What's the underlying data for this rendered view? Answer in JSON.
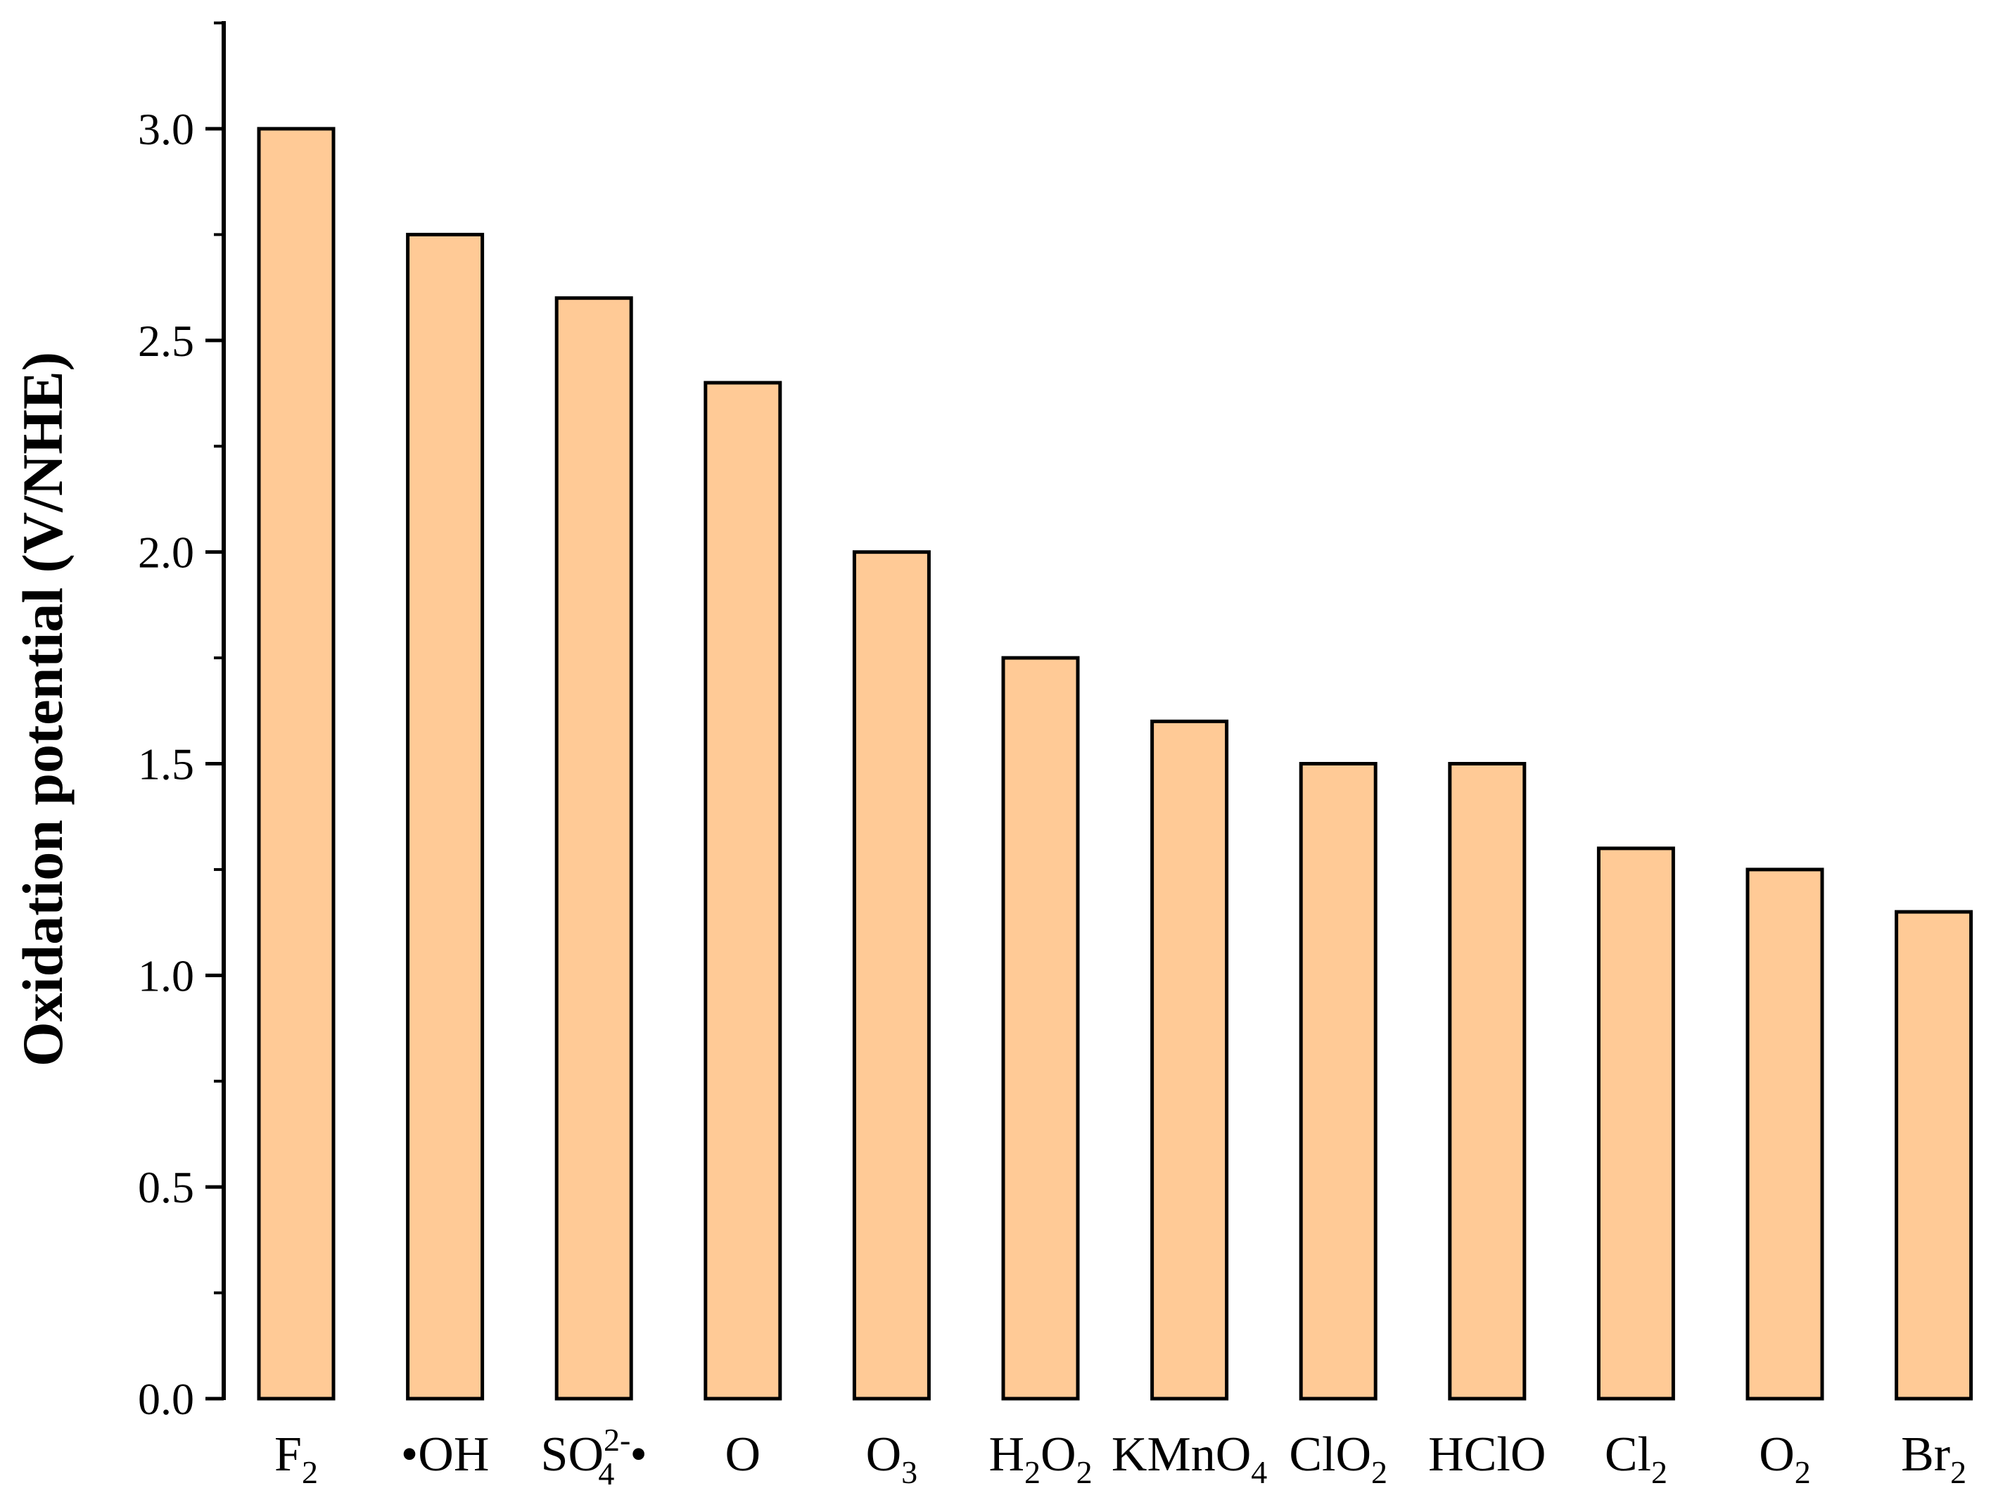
{
  "chart_data": {
    "type": "bar",
    "title": "",
    "xlabel": "",
    "ylabel": "Oxidation potential (V/NHE)",
    "ylim": [
      0,
      3.25
    ],
    "yticks": [
      "0.0",
      "0.5",
      "1.0",
      "1.5",
      "2.0",
      "2.5",
      "3.0"
    ],
    "grid": false,
    "bar_color": "#FFCA96",
    "edge_color": "#000000",
    "categories": [
      {
        "text": "F",
        "sub": "2",
        "sup": "",
        "pre": "",
        "post": ""
      },
      {
        "text": "OH",
        "sub": "",
        "sup": "",
        "pre": "•",
        "post": ""
      },
      {
        "text": "SO",
        "sub": "4",
        "sup": "2-",
        "pre": "",
        "post": "•"
      },
      {
        "text": "O",
        "sub": "",
        "sup": "",
        "pre": "",
        "post": ""
      },
      {
        "text": "O",
        "sub": "3",
        "sup": "",
        "pre": "",
        "post": ""
      },
      {
        "text": "H",
        "sub": "2",
        "sup": "",
        "pre": "",
        "post": "O",
        "sub2": "2"
      },
      {
        "text": "KMnO",
        "sub": "4",
        "sup": "",
        "pre": "",
        "post": ""
      },
      {
        "text": "ClO",
        "sub": "2",
        "sup": "",
        "pre": "",
        "post": ""
      },
      {
        "text": "HClO",
        "sub": "",
        "sup": "",
        "pre": "",
        "post": ""
      },
      {
        "text": "Cl",
        "sub": "2",
        "sup": "",
        "pre": "",
        "post": ""
      },
      {
        "text": "O",
        "sub": "2",
        "sup": "",
        "pre": "",
        "post": ""
      },
      {
        "text": "Br",
        "sub": "2",
        "sup": "",
        "pre": "",
        "post": ""
      }
    ],
    "values": [
      3.0,
      2.75,
      2.6,
      2.4,
      2.0,
      1.75,
      1.6,
      1.5,
      1.5,
      1.3,
      1.25,
      1.15
    ]
  }
}
